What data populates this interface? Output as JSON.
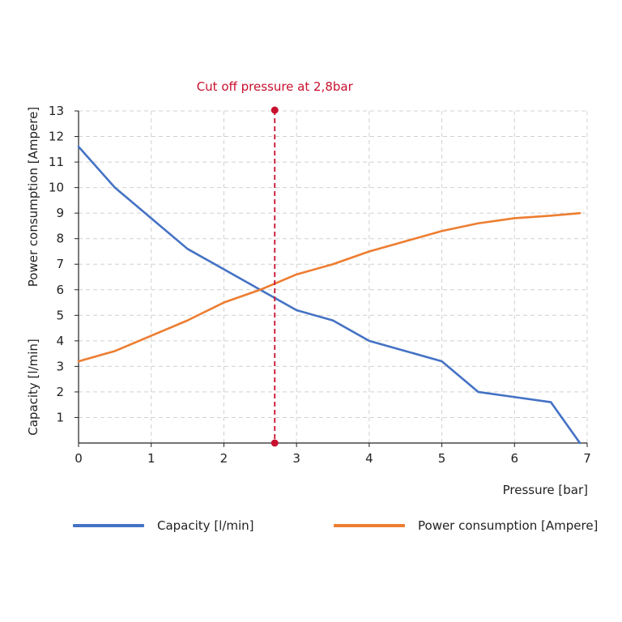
{
  "chart_data": {
    "type": "line",
    "annotation": {
      "text": "Cut off pressure at 2,8bar",
      "x": 2.7,
      "color": "#c8102e"
    },
    "xlabel": "Pressure [bar]",
    "ylabel_upper": "Power consumption [Ampere]",
    "ylabel_lower": "Capacity [l/min]",
    "xlim": [
      0,
      7
    ],
    "ylim": [
      0,
      13
    ],
    "xticks": [
      0,
      1,
      2,
      3,
      4,
      5,
      6,
      7
    ],
    "yticks": [
      1,
      2,
      3,
      4,
      5,
      6,
      7,
      8,
      9,
      10,
      11,
      12,
      13
    ],
    "grid": true,
    "legend_position": "bottom",
    "series": [
      {
        "name": "Capacity [l/min]",
        "color": "#4472c4",
        "x": [
          0,
          0.5,
          1,
          1.5,
          2,
          2.5,
          3,
          3.5,
          4,
          4.5,
          5,
          5.5,
          6,
          6.5,
          6.9
        ],
        "y": [
          11.6,
          10.0,
          8.8,
          7.6,
          6.8,
          6.0,
          5.2,
          4.8,
          4.0,
          3.6,
          3.2,
          2.0,
          1.8,
          1.6,
          0
        ]
      },
      {
        "name": "Power consumption [Ampere]",
        "color": "#ed7d31",
        "x": [
          0,
          0.5,
          1,
          1.5,
          2,
          2.5,
          3,
          3.5,
          4,
          4.5,
          5,
          5.5,
          6,
          6.5,
          6.9
        ],
        "y": [
          3.2,
          3.6,
          4.2,
          4.8,
          5.5,
          6.0,
          6.6,
          7.0,
          7.5,
          7.9,
          8.3,
          8.6,
          8.8,
          8.9,
          9.0
        ]
      }
    ]
  }
}
